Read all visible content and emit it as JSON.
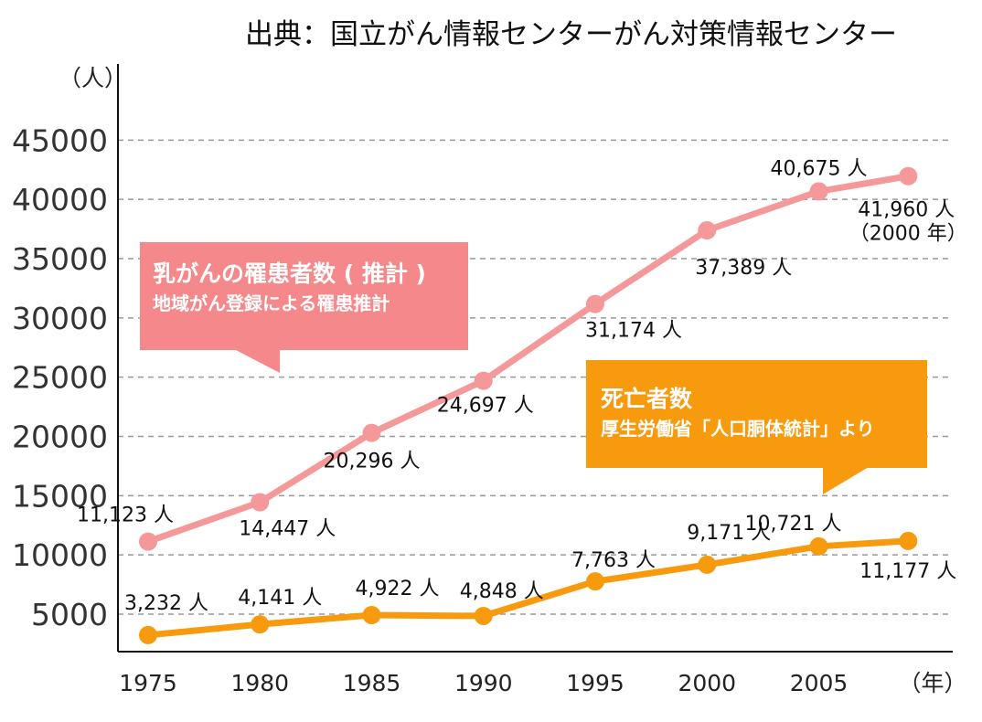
{
  "source": "出典：国立がん情報センターがん対策情報センター",
  "chart_data": {
    "type": "line",
    "y_unit": "（人）",
    "x_unit": "（年）",
    "categories": [
      "1975",
      "1980",
      "1985",
      "1990",
      "1995",
      "2000",
      "2005"
    ],
    "y_ticks": [
      "5000",
      "10000",
      "15000",
      "20000",
      "25000",
      "30000",
      "35000",
      "40000",
      "45000"
    ],
    "ylim": [
      2500,
      47000
    ],
    "grid": "horizontal-dashed",
    "series": [
      {
        "name": "乳がんの罹患者数 ( 推計 )",
        "note": "地域がん登録による罹患推計",
        "color": "#f5989a",
        "x": [
          1975,
          1980,
          1985,
          1990,
          1995,
          2000,
          2005,
          2009
        ],
        "values": [
          11123,
          14447,
          20296,
          24697,
          31174,
          37389,
          40675,
          41960
        ],
        "labels": [
          "11,123 人",
          "14,447 人",
          "20,296 人",
          "24,697 人",
          "31,174 人",
          "37,389 人",
          "40,675 人",
          "41,960 人"
        ],
        "extra_label": "（2000 年）"
      },
      {
        "name": "死亡者数",
        "note": "厚生労働省「人口胴体統計」より",
        "color": "#f89a0e",
        "x": [
          1975,
          1980,
          1985,
          1990,
          1995,
          2000,
          2005,
          2009
        ],
        "values": [
          3232,
          4141,
          4922,
          4848,
          7763,
          9171,
          10721,
          11177
        ],
        "labels": [
          "3,232 人",
          "4,141 人",
          "4,922 人",
          "4,848 人",
          "7,763 人",
          "9,171 人",
          "10,721 人",
          "11,177 人"
        ]
      }
    ]
  }
}
